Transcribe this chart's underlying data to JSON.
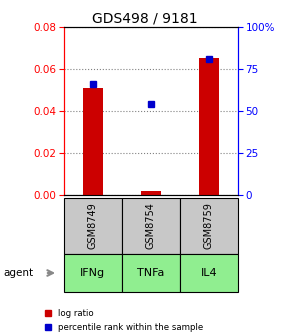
{
  "title": "GDS498 / 9181",
  "samples": [
    "GSM8749",
    "GSM8754",
    "GSM8759"
  ],
  "agents": [
    "IFNg",
    "TNFa",
    "IL4"
  ],
  "log_ratio": [
    0.051,
    0.002,
    0.065
  ],
  "percentile_rank": [
    66.0,
    54.0,
    81.0
  ],
  "ylim_left": [
    0,
    0.08
  ],
  "ylim_right": [
    0,
    100
  ],
  "bar_color": "#cc0000",
  "point_color": "#0000cc",
  "sample_box_color": "#c8c8c8",
  "agent_box_color": "#90ee90",
  "title_fontsize": 10,
  "tick_fontsize": 7.5,
  "agent_fontsize": 8,
  "sample_fontsize": 7
}
